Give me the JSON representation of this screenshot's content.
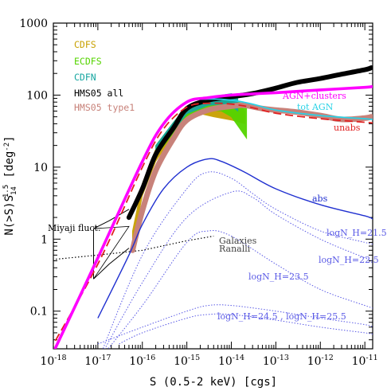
{
  "chart_data": {
    "type": "line",
    "title": "",
    "xlabel": "S (0.5-2 keV) [cgs]",
    "ylabel": "N(>S)S",
    "ylabel_sub": "14",
    "ylabel_sup": "1.5",
    "ylabel_unit_prefix": " [deg",
    "ylabel_unit_sup": "-2",
    "ylabel_unit_suffix": "]",
    "x_scale": "log",
    "y_scale": "log",
    "xlim": [
      1e-18,
      1.5e-11
    ],
    "ylim": [
      0.03,
      1000
    ],
    "x_ticks": [
      {
        "value": 1e-18,
        "base": "10",
        "exp": "-18"
      },
      {
        "value": 1e-17,
        "base": "10",
        "exp": "-17"
      },
      {
        "value": 1e-16,
        "base": "10",
        "exp": "-16"
      },
      {
        "value": 1e-15,
        "base": "10",
        "exp": "-15"
      },
      {
        "value": 1e-14,
        "base": "10",
        "exp": "-14"
      },
      {
        "value": 1e-13,
        "base": "10",
        "exp": "-13"
      },
      {
        "value": 1e-12,
        "base": "10",
        "exp": "-12"
      },
      {
        "value": 1e-11,
        "base": "10",
        "exp": "-11"
      }
    ],
    "y_ticks": [
      {
        "value": 0.1,
        "label": "0.1"
      },
      {
        "value": 1,
        "label": "1"
      },
      {
        "value": 10,
        "label": "10"
      },
      {
        "value": 100,
        "label": "100"
      },
      {
        "value": 1000,
        "label": "1000"
      }
    ],
    "legend": {
      "placement": "top-left",
      "entries": [
        {
          "label": "CDFS",
          "color": "#c8a000"
        },
        {
          "label": "ECDFS",
          "color": "#55d400"
        },
        {
          "label": "CDFN",
          "color": "#16a6a0"
        },
        {
          "label": "HMS05 all",
          "color": "#000000"
        },
        {
          "label": "HMS05 type1",
          "color": "#c8827a"
        }
      ]
    },
    "series": [
      {
        "name": "AGN+clusters",
        "color": "#ff00ff",
        "width": 3.6,
        "label_color": "#ff00ff",
        "x": [
          8e-19,
          1e-17,
          1e-16,
          3e-16,
          1e-15,
          3e-15,
          1e-14,
          3e-14,
          1e-13,
          1e-12,
          1e-11,
          1.5e-11
        ],
        "y": [
          0.02,
          0.55,
          12,
          40,
          80,
          92,
          100,
          104,
          108,
          118,
          128,
          132
        ]
      },
      {
        "name": "tot AGN",
        "color": "#28d2e6",
        "width": 1.8,
        "label_color": "#28d2e6",
        "x": [
          8e-19,
          1e-17,
          1e-16,
          3e-16,
          1e-15,
          3e-15,
          1e-14,
          3e-14,
          1e-13,
          1e-12,
          1e-11,
          1.5e-11
        ],
        "y": [
          0.02,
          0.55,
          12,
          40,
          80,
          88,
          85,
          75,
          62,
          52,
          47,
          46
        ]
      },
      {
        "name": "unabs",
        "color": "#e02020",
        "width": 1.8,
        "label_color": "#e02020",
        "x": [
          6e-19,
          1e-17,
          1e-16,
          3e-16,
          1e-15,
          3e-15,
          1e-14,
          3e-14,
          1e-13,
          1e-12,
          1e-11,
          1.5e-11
        ],
        "y": [
          0.02,
          0.45,
          10,
          34,
          68,
          77,
          75,
          67,
          56,
          47,
          42,
          41
        ]
      },
      {
        "name": "abs",
        "color": "#2030d0",
        "width": 1.4,
        "label_color": "#2030d0",
        "x": [
          1e-17,
          5e-17,
          1e-16,
          3e-16,
          1e-15,
          3e-15,
          6e-15,
          2e-14,
          1e-13,
          1e-12,
          1e-11,
          1.5e-11
        ],
        "y": [
          0.08,
          0.6,
          1.6,
          5,
          10,
          13,
          12,
          8.5,
          5,
          3,
          2.1,
          1.9
        ]
      }
    ],
    "dotted_components": [
      {
        "label": "logN_H=21.5",
        "color": "#5a5ae6",
        "x": [
          1e-17,
          1e-16,
          1e-15,
          3e-15,
          1e-14,
          3e-14,
          1e-13,
          1e-12,
          1e-11,
          1.5e-11
        ],
        "y": [
          0.02,
          0.6,
          5,
          8.5,
          7,
          4.3,
          2.6,
          1.3,
          0.9,
          0.85
        ]
      },
      {
        "label": "logN_H=22.5",
        "color": "#5a5ae6",
        "x": [
          1e-17,
          1e-16,
          1e-15,
          1e-14,
          3e-14,
          1e-13,
          1e-12,
          1e-11,
          1.5e-11
        ],
        "y": [
          0.02,
          0.25,
          2,
          4.5,
          3.8,
          2.2,
          1,
          0.55,
          0.5
        ]
      },
      {
        "label": "logN_H=23.5",
        "color": "#5a5ae6",
        "x": [
          1e-17,
          1e-16,
          1e-15,
          3e-15,
          1e-14,
          1e-13,
          1e-12,
          1e-11,
          1.5e-11
        ],
        "y": [
          0.02,
          0.12,
          0.9,
          1.3,
          1.1,
          0.45,
          0.2,
          0.12,
          0.11
        ]
      },
      {
        "label": "logN_H=24.5 , logN_H=25.5",
        "color": "#5a5ae6",
        "x": [
          1e-17,
          1e-16,
          1e-15,
          3e-15,
          1e-14,
          1e-13,
          1e-12,
          1e-11,
          1.5e-11
        ],
        "y": [
          0.035,
          0.06,
          0.1,
          0.12,
          0.12,
          0.1,
          0.08,
          0.065,
          0.06
        ]
      },
      {
        "label": "",
        "color": "#5a5ae6",
        "x": [
          3e-17,
          1e-16,
          1e-15,
          3e-15,
          1e-14,
          1e-13,
          1e-12,
          1e-11,
          1.5e-11
        ],
        "y": [
          0.035,
          0.05,
          0.08,
          0.09,
          0.09,
          0.075,
          0.06,
          0.05,
          0.048
        ]
      }
    ],
    "galaxies": {
      "label_line1": "Galaxies",
      "label_line2": "Ranalli",
      "color": "#000000",
      "x": [
        5e-19,
        1e-17,
        1e-16,
        1e-15,
        4e-15
      ],
      "y": [
        0.5,
        0.6,
        0.7,
        0.95,
        1.1
      ]
    },
    "miyaji": {
      "label": "Miyaji fluct.",
      "color": "#000000",
      "upper_x": [
        8e-18,
        1.8e-17,
        5e-17
      ],
      "upper_y": [
        1.4,
        1.8,
        2.6
      ],
      "lower_x": [
        8e-18,
        1.8e-17,
        5e-17
      ],
      "lower_y": [
        0.28,
        0.45,
        0.75
      ],
      "tip_x": 5e-17,
      "tip_y": 1.5
    },
    "observed_bands": [
      {
        "name": "CDFS",
        "color": "#c8a000",
        "x": [
          6e-17,
          1e-16,
          2e-16,
          5e-16,
          1e-15,
          2e-15,
          4e-15,
          1e-14,
          1.5e-14,
          2e-14
        ],
        "y_low": [
          0.8,
          4,
          12,
          28,
          45,
          55,
          50,
          45,
          42,
          40
        ],
        "y_high": [
          1.3,
          6,
          18,
          38,
          60,
          75,
          80,
          82,
          75,
          60
        ]
      },
      {
        "name": "ECDFS",
        "color": "#55d400",
        "x": [
          2e-16,
          5e-16,
          1e-15,
          3e-15,
          6e-15,
          1e-14,
          1.5e-14,
          2.2e-14
        ],
        "y_low": [
          14,
          30,
          50,
          62,
          60,
          50,
          35,
          25
        ],
        "y_high": [
          20,
          42,
          70,
          85,
          95,
          90,
          80,
          70
        ]
      },
      {
        "name": "CDFN",
        "color": "#16a6a0",
        "x": [
          2e-16,
          5e-16,
          1e-15,
          3e-15,
          6e-15,
          1e-14,
          1.4e-14
        ],
        "y_low": [
          15,
          32,
          55,
          72,
          75,
          70,
          60
        ],
        "y_high": [
          20,
          42,
          70,
          90,
          100,
          105,
          100
        ]
      }
    ],
    "hms_all": {
      "name": "HMS05 all",
      "color": "#000000",
      "x": [
        5e-17,
        1e-16,
        2e-16,
        5e-16,
        1e-15,
        3e-15,
        1e-14,
        3e-14,
        1e-13,
        3e-13,
        1e-12,
        3e-12,
        1e-11,
        1.4e-11
      ],
      "y": [
        2.0,
        5,
        15,
        35,
        65,
        85,
        95,
        105,
        125,
        150,
        170,
        195,
        225,
        240
      ]
    },
    "hms_type1": {
      "name": "HMS05 type1",
      "color": "#c8827a",
      "x": [
        6e-17,
        1e-16,
        2e-16,
        5e-16,
        1e-15,
        3e-15,
        1e-14,
        2e-14,
        5e-14,
        1e-13,
        3e-13,
        1e-12,
        3e-12,
        1e-11,
        1.4e-11
      ],
      "y": [
        0.7,
        2.5,
        9,
        25,
        45,
        62,
        70,
        72,
        65,
        62,
        58,
        52,
        46,
        48,
        50
      ]
    }
  }
}
